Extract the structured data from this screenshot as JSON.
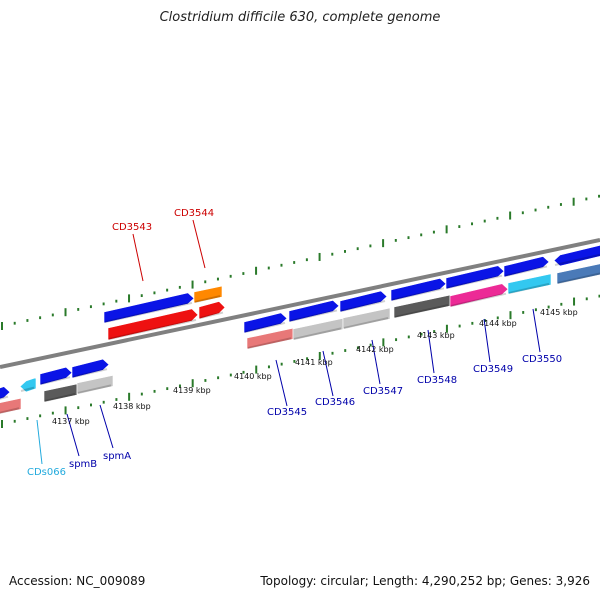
{
  "title": "Clostridium difficile 630, complete genome",
  "footer": {
    "accession": "Accession: NC_009089",
    "summary": "Topology: circular; Length: 4,290,252 bp; Genes: 3,926"
  },
  "kbp_labels": [
    "4137 kbp",
    "4138 kbp",
    "4139 kbp",
    "4140 kbp",
    "4141 kbp",
    "4142 kbp",
    "4143 kbp",
    "4144 kbp",
    "4145 kbp"
  ],
  "gene_labels": [
    {
      "name": "CD3543",
      "color": "#cc0000"
    },
    {
      "name": "CD3544",
      "color": "#cc0000"
    },
    {
      "name": "CD3545",
      "color": "#0000aa"
    },
    {
      "name": "CD3546",
      "color": "#0000aa"
    },
    {
      "name": "CD3547",
      "color": "#0000aa"
    },
    {
      "name": "CD3548",
      "color": "#0000aa"
    },
    {
      "name": "CD3549",
      "color": "#0000aa"
    },
    {
      "name": "CD3550",
      "color": "#0000aa"
    },
    {
      "name": "spmB",
      "color": "#0000aa"
    },
    {
      "name": "spmA",
      "color": "#0000aa"
    },
    {
      "name": "CDs066",
      "color": "#22aadd"
    }
  ],
  "colors": {
    "blue": "#0a14e6",
    "red": "#ee1111",
    "orange": "#ff8800",
    "pink": "#ec2a96",
    "cyan": "#33c8f0",
    "steel": "#4a7ab8",
    "salmon": "#e87878",
    "darkgray": "#5a5a5a",
    "lightgray": "#c4c4c4",
    "tick": "#2a7a2a",
    "backbone": "#808080"
  }
}
